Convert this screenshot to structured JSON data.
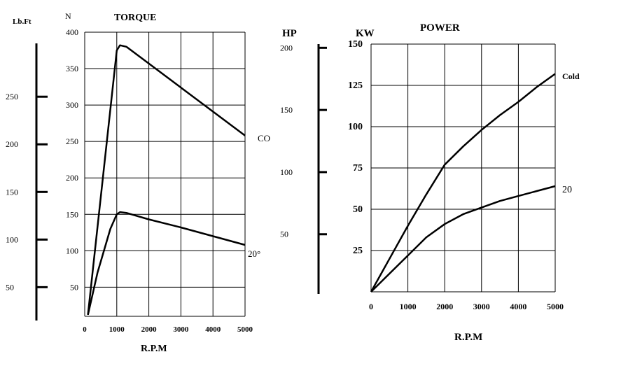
{
  "chart_data": [
    {
      "type": "line",
      "title": "TORQUE",
      "xlabel": "R.P.M",
      "ylabel": "N",
      "secondary_ylabel": "Lb.Ft",
      "xlim": [
        0,
        5000
      ],
      "ylim": [
        10,
        400
      ],
      "secondary_ylim": [
        15,
        306
      ],
      "grid": true,
      "xticks": [
        0,
        1000,
        2000,
        3000,
        4000,
        5000
      ],
      "yticks": [
        50,
        100,
        150,
        200,
        250,
        300,
        350,
        400
      ],
      "secondary_yticks": [
        50,
        100,
        150,
        200,
        250
      ],
      "series": [
        {
          "name": "CO",
          "x": [
            100,
            1000,
            1100,
            1300,
            5000
          ],
          "y": [
            12,
            375,
            382,
            380,
            258
          ]
        },
        {
          "name": "20°",
          "x": [
            100,
            400,
            800,
            1000,
            1100,
            1300,
            2000,
            3000,
            4000,
            5000
          ],
          "y": [
            12,
            70,
            130,
            150,
            153,
            152,
            143,
            132,
            120,
            108
          ]
        }
      ]
    },
    {
      "type": "line",
      "title": "POWER",
      "xlabel": "R.P.M",
      "ylabel": "KW",
      "secondary_ylabel": "HP",
      "xlim": [
        0,
        5000
      ],
      "ylim": [
        0,
        150
      ],
      "secondary_ylim": [
        2,
        203
      ],
      "grid": true,
      "xticks": [
        0,
        1000,
        2000,
        3000,
        4000,
        5000
      ],
      "yticks": [
        25,
        50,
        75,
        100,
        125,
        150
      ],
      "secondary_yticks": [
        50,
        100,
        150,
        200
      ],
      "series": [
        {
          "name": "Cold",
          "x": [
            0,
            500,
            1000,
            1500,
            2000,
            2500,
            3000,
            3500,
            4000,
            4500,
            5000
          ],
          "y": [
            0,
            20,
            40,
            59,
            77,
            88,
            98,
            107,
            115,
            124,
            132
          ]
        },
        {
          "name": "20",
          "x": [
            0,
            500,
            1000,
            1500,
            2000,
            2500,
            3000,
            3500,
            4000,
            4500,
            5000
          ],
          "y": [
            0,
            11,
            22,
            33,
            41,
            47,
            51,
            55,
            58,
            61,
            64
          ]
        }
      ]
    }
  ]
}
